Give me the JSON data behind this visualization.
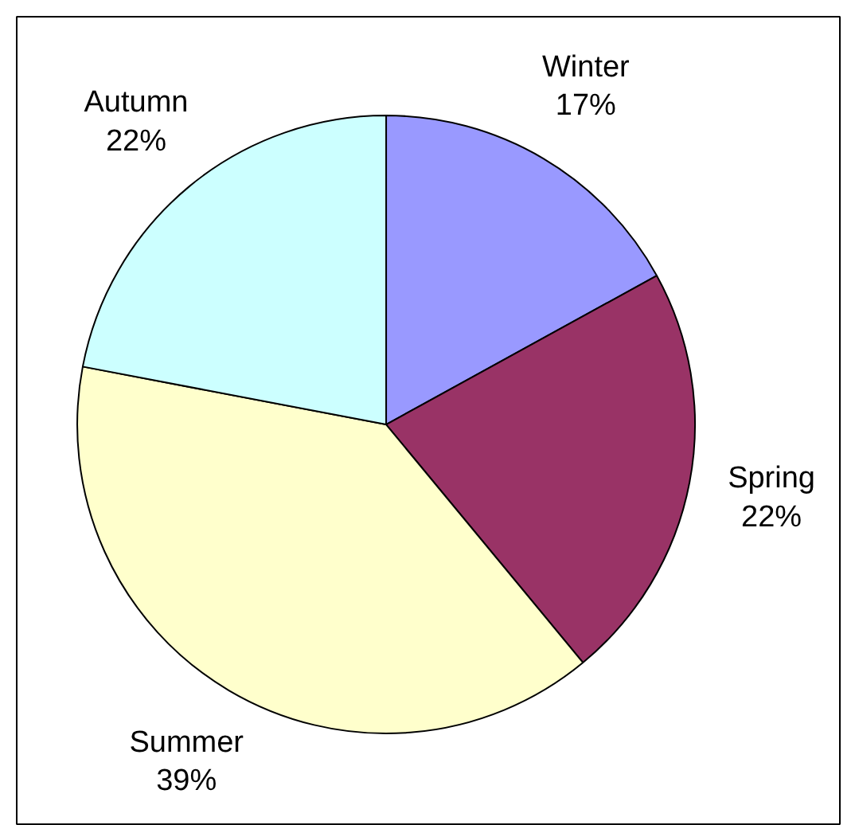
{
  "chart_data": {
    "type": "pie",
    "categories": [
      "Winter",
      "Spring",
      "Summer",
      "Autumn"
    ],
    "values": [
      17,
      22,
      39,
      22
    ],
    "value_labels": [
      "17%",
      "22%",
      "39%",
      "22%"
    ],
    "colors": [
      "#9999ff",
      "#993366",
      "#ffffcc",
      "#ccffff"
    ]
  }
}
